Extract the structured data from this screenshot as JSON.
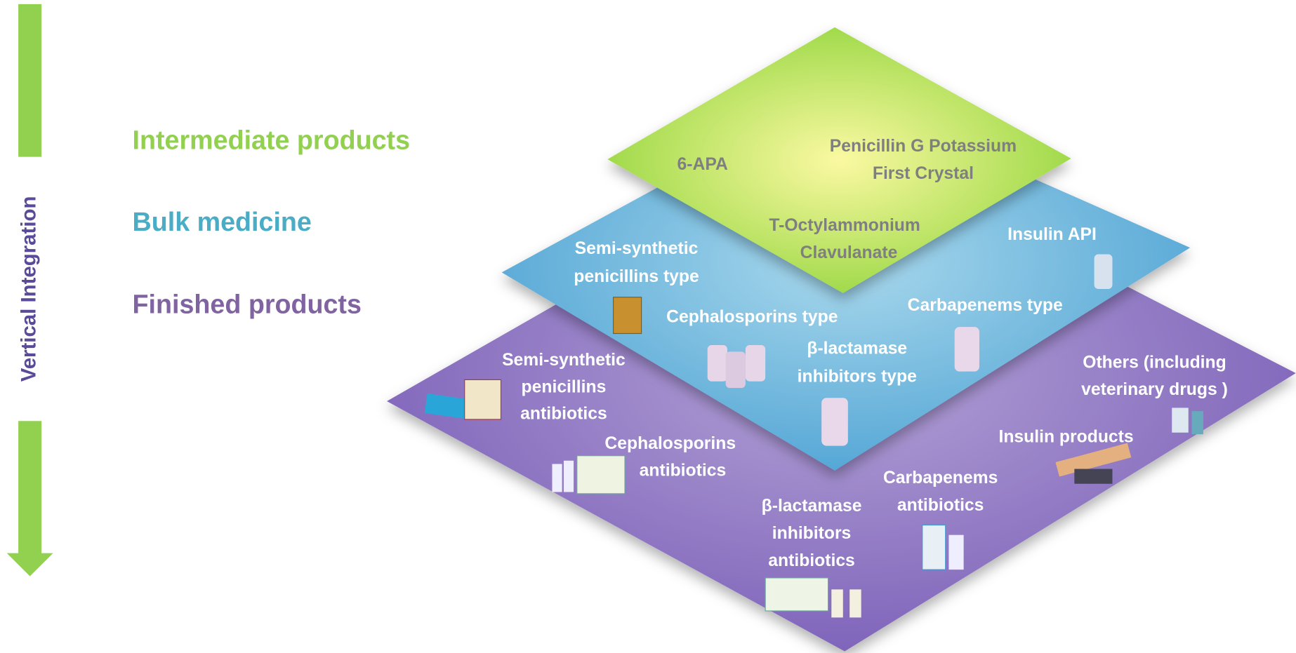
{
  "vertical_label": "Vertical Integration",
  "legend": [
    "Intermediate products",
    "Bulk medicine",
    "Finished products"
  ],
  "layers": [
    {
      "name": "Intermediate products",
      "labels": [
        [
          "6-APA"
        ],
        [
          "Penicillin G Potassium",
          "First Crystal"
        ],
        [
          "T-Octylammonium",
          "Clavulanate"
        ]
      ]
    },
    {
      "name": "Bulk medicine",
      "labels": [
        [
          "Semi-synthetic",
          "penicillins type"
        ],
        [
          "Cephalosporins type"
        ],
        [
          "β-lactamase",
          "inhibitors type"
        ],
        [
          "Carbapenems type"
        ],
        [
          "Insulin API"
        ]
      ]
    },
    {
      "name": "Finished products",
      "labels": [
        [
          "Semi-synthetic",
          "penicillins",
          "antibiotics"
        ],
        [
          "Cephalosporins",
          "antibiotics"
        ],
        [
          "β-lactamase",
          "inhibitors",
          "antibiotics"
        ],
        [
          "Carbapenems",
          "antibiotics"
        ],
        [
          "Insulin products"
        ],
        [
          "Others (including",
          "veterinary drugs )"
        ]
      ]
    }
  ]
}
